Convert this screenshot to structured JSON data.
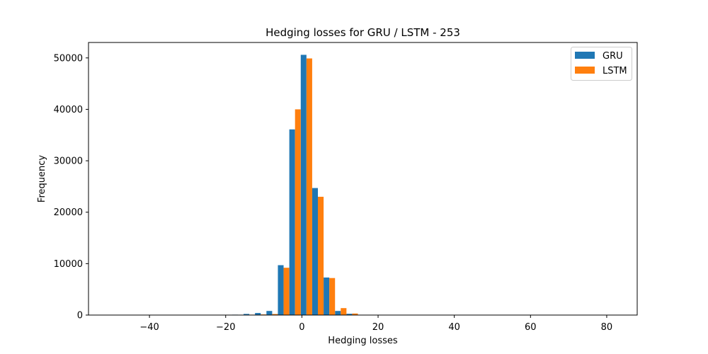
{
  "chart_data": {
    "type": "bar",
    "title": "Hedging losses for GRU / LSTM - 253",
    "xlabel": "Hedging losses",
    "ylabel": "Frequency",
    "xlim": [
      -56,
      88
    ],
    "ylim": [
      0,
      53000
    ],
    "xticks": [
      -40,
      -20,
      0,
      20,
      40,
      60,
      80
    ],
    "xtick_labels": [
      "−40",
      "−20",
      "0",
      "20",
      "40",
      "60",
      "80"
    ],
    "yticks": [
      0,
      10000,
      20000,
      30000,
      40000,
      50000
    ],
    "ytick_labels": [
      "0",
      "10000",
      "20000",
      "30000",
      "40000",
      "50000"
    ],
    "grid": false,
    "legend_position": "top-right",
    "bin_edges": [
      -18.3,
      -15.3,
      -12.3,
      -9.3,
      -6.3,
      -3.3,
      -0.3,
      2.7,
      5.7,
      8.7,
      11.7,
      14.7
    ],
    "series": [
      {
        "name": "GRU",
        "color": "#1f77b4",
        "values": [
          80,
          220,
          400,
          800,
          9700,
          36100,
          50600,
          24700,
          7300,
          800,
          250,
          80
        ]
      },
      {
        "name": "LSTM",
        "color": "#ff7f0e",
        "values": [
          30,
          80,
          120,
          200,
          9200,
          40000,
          49900,
          23000,
          7200,
          1350,
          300,
          100
        ]
      }
    ]
  }
}
